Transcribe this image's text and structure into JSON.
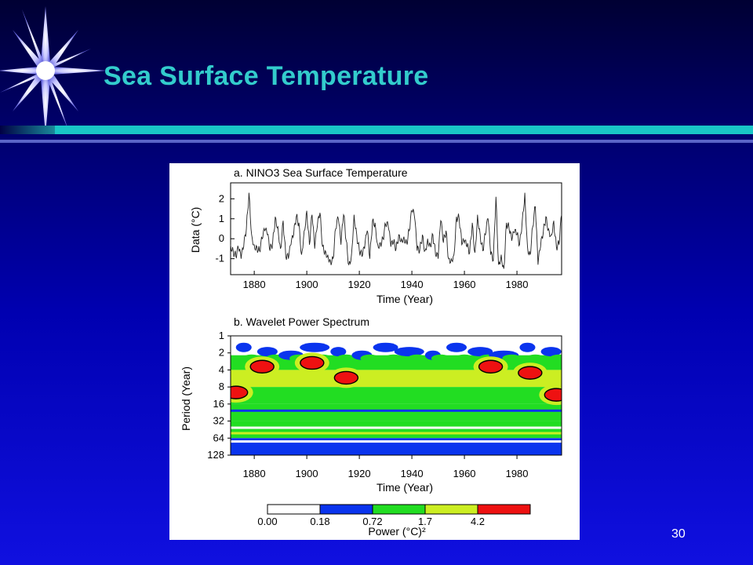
{
  "slide": {
    "title": "Sea Surface Temperature",
    "number": "30"
  },
  "colors": {
    "title": "#33cccc",
    "accent_rule": "#19c6c6",
    "power_levels": [
      "#ffffff",
      "#0a34ee",
      "#22dd22",
      "#ccee22",
      "#ee1111"
    ]
  },
  "chart_data": [
    {
      "type": "line",
      "title": "a. NINO3 Sea Surface Temperature",
      "xlabel": "Time (Year)",
      "ylabel": "Data (°C)",
      "xlim": [
        1871,
        1997
      ],
      "ylim": [
        -1.8,
        2.8
      ],
      "xticks": [
        1880,
        1900,
        1920,
        1940,
        1960,
        1980
      ],
      "yticks": [
        -1,
        0,
        1,
        2
      ],
      "series": [
        {
          "x": [
            1871,
            1872,
            1873,
            1874,
            1875,
            1876,
            1877,
            1878,
            1879,
            1880,
            1881,
            1882,
            1883,
            1884,
            1885,
            1886,
            1887,
            1888,
            1889,
            1890,
            1891,
            1892,
            1893,
            1894,
            1895,
            1896,
            1897,
            1898,
            1899,
            1900,
            1901,
            1902,
            1903,
            1904,
            1905,
            1906,
            1907,
            1908,
            1909,
            1910,
            1911,
            1912,
            1913,
            1914,
            1915,
            1916,
            1917,
            1918,
            1919,
            1920,
            1921,
            1922,
            1923,
            1924,
            1925,
            1926,
            1927,
            1928,
            1929,
            1930,
            1931,
            1932,
            1933,
            1934,
            1935,
            1936,
            1937,
            1938,
            1939,
            1940,
            1941,
            1942,
            1943,
            1944,
            1945,
            1946,
            1947,
            1948,
            1949,
            1950,
            1951,
            1952,
            1953,
            1954,
            1955,
            1956,
            1957,
            1958,
            1959,
            1960,
            1961,
            1962,
            1963,
            1964,
            1965,
            1966,
            1967,
            1968,
            1969,
            1970,
            1971,
            1972,
            1973,
            1974,
            1975,
            1976,
            1977,
            1978,
            1979,
            1980,
            1981,
            1982,
            1983,
            1984,
            1985,
            1986,
            1987,
            1988,
            1989,
            1990,
            1991,
            1992,
            1993,
            1994,
            1995,
            1996,
            1997
          ],
          "y": [
            -0.3,
            -0.6,
            -0.9,
            -0.5,
            -1.0,
            -0.4,
            0.5,
            2.3,
            0.2,
            -0.3,
            -0.4,
            -0.6,
            0.0,
            0.4,
            0.2,
            -0.6,
            -0.2,
            1.1,
            0.6,
            -0.5,
            0.9,
            -0.9,
            -1.0,
            -0.3,
            0.2,
            1.1,
            0.8,
            -0.8,
            0.4,
            1.4,
            -0.3,
            1.2,
            -0.5,
            0.6,
            1.3,
            -0.4,
            -0.6,
            -0.8,
            -1.1,
            -1.0,
            0.5,
            1.0,
            -0.3,
            1.2,
            -0.1,
            -1.3,
            -0.8,
            1.2,
            0.2,
            -0.6,
            -0.9,
            -0.5,
            0.4,
            -1.0,
            0.9,
            0.8,
            -0.3,
            -0.2,
            0.0,
            0.7,
            0.6,
            -0.4,
            -0.2,
            -0.5,
            0.2,
            0.0,
            0.1,
            -0.2,
            0.4,
            1.4,
            1.1,
            -0.6,
            -0.6,
            0.2,
            -0.6,
            0.0,
            -0.3,
            0.2,
            -0.8,
            -1.0,
            0.9,
            -0.2,
            0.4,
            -1.0,
            -1.0,
            -0.8,
            1.1,
            1.0,
            -0.3,
            -0.2,
            -0.4,
            -0.7,
            0.8,
            -0.7,
            1.2,
            0.2,
            -0.6,
            0.2,
            1.0,
            -0.8,
            -1.1,
            2.1,
            -1.3,
            -0.8,
            -1.5,
            0.8,
            0.5,
            -0.1,
            0.3,
            0.2,
            -0.3,
            0.9,
            2.3,
            -0.4,
            -0.8,
            0.6,
            1.6,
            -1.3,
            -0.4,
            0.3,
            1.1,
            0.5,
            0.2,
            0.9,
            -0.4,
            -0.3,
            1.2
          ]
        }
      ]
    },
    {
      "type": "heatmap",
      "title": "b. Wavelet Power Spectrum",
      "xlabel": "Time (Year)",
      "ylabel": "Period (Year)",
      "xlim": [
        1871,
        1997
      ],
      "ylim_log2": [
        1,
        128
      ],
      "xticks": [
        1880,
        1900,
        1920,
        1940,
        1960,
        1980
      ],
      "yticks": [
        1,
        2,
        4,
        8,
        16,
        32,
        64,
        128
      ],
      "bands": [
        {
          "period": [
            1,
            2.2
          ],
          "level": 0
        },
        {
          "period": [
            2.2,
            4
          ],
          "level": 2
        },
        {
          "period": [
            4,
            8
          ],
          "level": 3
        },
        {
          "period": [
            8,
            16
          ],
          "level": 2
        },
        {
          "period": [
            16,
            32
          ],
          "level": 2
        },
        {
          "period": [
            32,
            64
          ],
          "level": 2
        },
        {
          "period": [
            64,
            128
          ],
          "level": 1
        }
      ],
      "hotspots": [
        {
          "year": 1883,
          "period": 3.5,
          "level": 4
        },
        {
          "year": 1902,
          "period": 3.0,
          "level": 4
        },
        {
          "year": 1915,
          "period": 5.5,
          "level": 4
        },
        {
          "year": 1970,
          "period": 3.5,
          "level": 4
        },
        {
          "year": 1985,
          "period": 4.5,
          "level": 4
        },
        {
          "year": 1873,
          "period": 10,
          "level": 4
        },
        {
          "year": 1995,
          "period": 11,
          "level": 4
        }
      ],
      "colorbar": {
        "label": "Power (°C)²",
        "ticks": [
          "0.00",
          "0.18",
          "0.72",
          "1.7",
          "4.2"
        ]
      }
    }
  ]
}
